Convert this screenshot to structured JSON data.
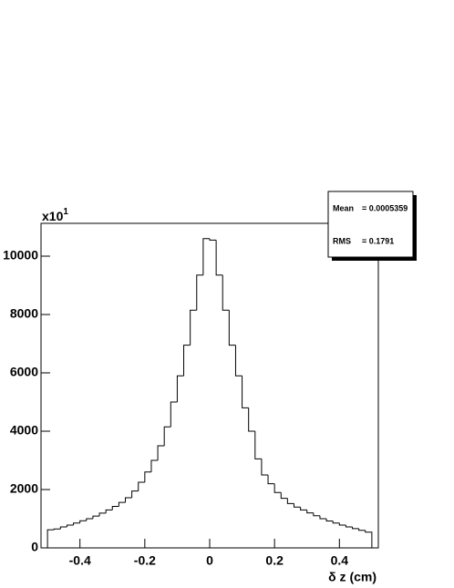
{
  "chart_data": {
    "type": "histogram",
    "x_label": "δ z (cm)",
    "y_multiplier": "x10",
    "y_multiplier_exponent": "1",
    "stats": [
      {
        "label": "Mean",
        "value": "= 0.0005359"
      },
      {
        "label": "RMS",
        "value": "= 0.1791"
      }
    ],
    "bins": [
      -0.5,
      -0.48,
      -0.46,
      -0.44,
      -0.42,
      -0.4,
      -0.38,
      -0.36,
      -0.34,
      -0.32,
      -0.3,
      -0.28,
      -0.26,
      -0.24,
      -0.22,
      -0.2,
      -0.18,
      -0.16,
      -0.14,
      -0.12,
      -0.1,
      -0.08,
      -0.06,
      -0.04,
      -0.02,
      0,
      0.02,
      0.04,
      0.06,
      0.08,
      0.1,
      0.12,
      0.14,
      0.16,
      0.18,
      0.2,
      0.22,
      0.24,
      0.26,
      0.28,
      0.3,
      0.32,
      0.34,
      0.36,
      0.38,
      0.4,
      0.42,
      0.44,
      0.46,
      0.48,
      0.5
    ],
    "values": [
      620,
      650,
      720,
      780,
      850,
      930,
      1000,
      1090,
      1190,
      1300,
      1420,
      1560,
      1720,
      1950,
      2250,
      2600,
      3000,
      3500,
      4150,
      5000,
      5900,
      6950,
      8150,
      9350,
      10600,
      10550,
      9350,
      8150,
      6950,
      5900,
      4800,
      4000,
      3050,
      2500,
      2200,
      1900,
      1700,
      1520,
      1400,
      1300,
      1200,
      1100,
      1000,
      920,
      850,
      780,
      720,
      660,
      600,
      540
    ],
    "color": "#000000",
    "xlim": [
      -0.52,
      0.52
    ],
    "xticks": [
      -0.4,
      -0.2,
      0,
      0.2,
      0.4
    ],
    "ylim": [
      0,
      11125
    ],
    "yticks": [
      0,
      2000,
      4000,
      6000,
      8000,
      10000
    ]
  }
}
